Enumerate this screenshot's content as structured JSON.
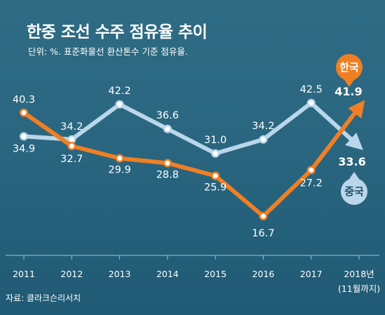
{
  "title": "한중 조선 수주 점유율 추이",
  "subtitle": "단위: %. 표준화물선 환산톤수 기준 점유율.",
  "source": "자료: 클라크슨리서치",
  "colors": {
    "korea": "#f07f24",
    "china": "#b9d6ea",
    "background": "#2a6680"
  },
  "chart_data": {
    "type": "line",
    "categories": [
      "2011",
      "2012",
      "2013",
      "2014",
      "2015",
      "2016",
      "2017",
      "2018년"
    ],
    "category_note": "(11월까지)",
    "series": [
      {
        "name": "한국",
        "values": [
          40.3,
          32.7,
          29.9,
          28.8,
          25.9,
          16.7,
          27.2,
          41.9
        ]
      },
      {
        "name": "중국",
        "values": [
          34.9,
          34.2,
          42.2,
          36.6,
          31.0,
          34.2,
          42.5,
          33.6
        ]
      }
    ],
    "ylim": [
      10,
      50
    ],
    "grid": false,
    "legend": "direct labels at line ends"
  }
}
